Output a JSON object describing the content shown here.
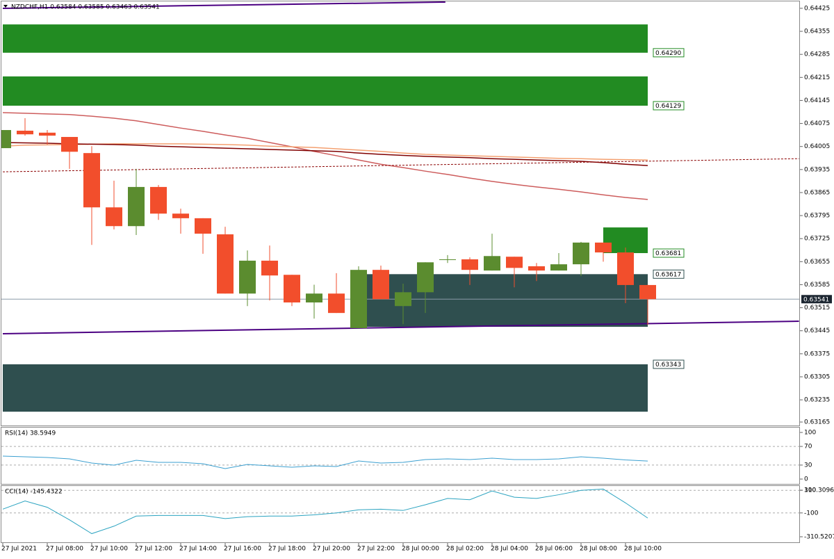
{
  "chart_data": [
    {
      "type": "candlestick",
      "title": "NZDCHF,H1  0.63584 0.63585 0.63463 0.63541",
      "categories": [
        "27 Jul 2021",
        null,
        "27 Jul 08:00",
        null,
        "27 Jul 10:00",
        null,
        "27 Jul 12:00",
        null,
        "27 Jul 14:00",
        null,
        "27 Jul 16:00",
        null,
        "27 Jul 18:00",
        null,
        "27 Jul 20:00",
        null,
        "27 Jul 22:00",
        null,
        "28 Jul 00:00",
        null,
        "28 Jul 02:00",
        null,
        "28 Jul 04:00",
        null,
        "28 Jul 06:00",
        null,
        "28 Jul 08:00",
        null,
        "28 Jul 10:00",
        null
      ],
      "open": [
        0.64,
        0.64053,
        0.64047,
        0.64034,
        0.63985,
        0.6382,
        0.63763,
        0.63882,
        0.63801,
        0.63787,
        0.63738,
        0.63558,
        0.63658,
        0.63615,
        0.63531,
        0.63558,
        0.63453,
        0.6363,
        0.6352,
        0.63562,
        0.63662,
        0.63662,
        0.63628,
        0.6367,
        0.63641,
        0.63628,
        0.63647,
        0.63713,
        0.63683,
        0.63584
      ],
      "high": [
        0.64055,
        0.64091,
        0.64055,
        0.64034,
        0.64006,
        0.63901,
        0.63937,
        0.63888,
        0.63816,
        0.63787,
        0.63761,
        0.63689,
        0.63704,
        0.63615,
        0.63585,
        0.6362,
        0.63641,
        0.63643,
        0.63588,
        0.63653,
        0.63675,
        0.63668,
        0.6374,
        0.6367,
        0.63651,
        0.63681,
        0.63715,
        0.63713,
        0.63698,
        0.63585
      ],
      "low": [
        0.64,
        0.64038,
        0.64011,
        0.63937,
        0.63706,
        0.63753,
        0.63736,
        0.63782,
        0.6374,
        0.63679,
        0.63558,
        0.6352,
        0.63537,
        0.6352,
        0.63482,
        0.63499,
        0.63453,
        0.63541,
        0.63465,
        0.63499,
        0.63651,
        0.63584,
        0.63628,
        0.63577,
        0.63596,
        0.63628,
        0.63611,
        0.63655,
        0.63529,
        0.63463
      ],
      "close": [
        0.64055,
        0.64042,
        0.64038,
        0.63989,
        0.6382,
        0.63763,
        0.63882,
        0.63801,
        0.63787,
        0.6374,
        0.63558,
        0.63658,
        0.63613,
        0.63531,
        0.63558,
        0.63499,
        0.6363,
        0.63541,
        0.63562,
        0.63653,
        0.63662,
        0.6363,
        0.63672,
        0.63636,
        0.63628,
        0.63647,
        0.63713,
        0.63683,
        0.63584,
        0.63541
      ],
      "up_color": "#5b8c2f",
      "down_color": "#f24e2c",
      "ylim": [
        0.63157,
        0.64446
      ],
      "yticks": [
        0.64425,
        0.64355,
        0.64285,
        0.64215,
        0.64145,
        0.64075,
        0.64005,
        0.63935,
        0.63865,
        0.63795,
        0.63725,
        0.63655,
        0.63585,
        0.63515,
        0.63445,
        0.63375,
        0.63305,
        0.63235,
        0.63165
      ],
      "lines": [
        {
          "color": "#cd5c5c",
          "values": [
            0.64108,
            0.64106,
            0.64104,
            0.64102,
            0.64097,
            0.64091,
            0.64083,
            0.64072,
            0.64061,
            0.64051,
            0.6404,
            0.6403,
            0.64017,
            0.64004,
            0.6399,
            0.63977,
            0.63964,
            0.63951,
            0.63941,
            0.6393,
            0.6392,
            0.63909,
            0.63899,
            0.6389,
            0.63882,
            0.63875,
            0.63867,
            0.63858,
            0.6385,
            0.63844
          ]
        },
        {
          "color": "#f4a070",
          "values": [
            0.64006,
            0.64009,
            0.6401,
            0.64011,
            0.64012,
            0.64013,
            0.64013,
            0.64013,
            0.64013,
            0.64012,
            0.64011,
            0.64009,
            0.64006,
            0.64004,
            0.64002,
            0.63998,
            0.63994,
            0.6399,
            0.63985,
            0.63981,
            0.63979,
            0.63977,
            0.63975,
            0.63973,
            0.63971,
            0.63969,
            0.63968,
            0.63966,
            0.63965,
            0.63964
          ]
        },
        {
          "color": "#800000",
          "values": [
            0.64017,
            0.64016,
            0.64015,
            0.64013,
            0.64012,
            0.64011,
            0.64009,
            0.64006,
            0.64004,
            0.64002,
            0.64,
            0.63998,
            0.63996,
            0.63994,
            0.63992,
            0.6399,
            0.63985,
            0.63981,
            0.63978,
            0.63975,
            0.63973,
            0.63971,
            0.63968,
            0.63966,
            0.63964,
            0.63962,
            0.6396,
            0.63956,
            0.63951,
            0.63947
          ]
        }
      ],
      "trendlines": [
        {
          "color": "#4b0082",
          "dashed": false,
          "start": [
            0,
            0.64425
          ],
          "end": [
            19.9,
            0.64444
          ]
        },
        {
          "color": "#4b0082",
          "dashed": false,
          "start": [
            0,
            0.63436
          ],
          "end": [
            35.8,
            0.63474
          ]
        },
        {
          "color": "#8b0000",
          "dashed": true,
          "start": [
            0,
            0.63928
          ],
          "end": [
            35.8,
            0.63968
          ]
        }
      ],
      "zones": [
        {
          "from": 0,
          "to": 29,
          "top": 0.64376,
          "bottom": 0.6429,
          "color": "#228b22"
        },
        {
          "from": 0,
          "to": 29,
          "top": 0.64218,
          "bottom": 0.64129,
          "color": "#228b22"
        },
        {
          "from": 16.3,
          "to": 29,
          "top": 0.63617,
          "bottom": 0.63457,
          "color": "#2f4f4f"
        },
        {
          "from": 0,
          "to": 29,
          "top": 0.63343,
          "bottom": 0.63199,
          "color": "#2f4f4f"
        },
        {
          "from": 27,
          "to": 29,
          "top": 0.63759,
          "bottom": 0.63681,
          "color": "#228b22"
        }
      ],
      "levels": [
        {
          "value": 0.6429,
          "label": "0.64290",
          "color": "#228b22"
        },
        {
          "value": 0.64129,
          "color": "#228b22"
        },
        {
          "value": 0.63681,
          "color": "#228b22"
        },
        {
          "value": 0.63617,
          "color": "#2f4f4f"
        },
        {
          "value": 0.63343,
          "color": "#2f4f4f"
        }
      ],
      "current_price": 0.63541
    },
    {
      "type": "line",
      "title": "RSI(14) 38.5949",
      "color": "#3a9fd0",
      "values": [
        49.3,
        47.8,
        46.3,
        43.3,
        34.3,
        29.9,
        40.3,
        35.8,
        35.8,
        32.8,
        22.4,
        31.3,
        28.4,
        25.4,
        28.4,
        26.9,
        38.8,
        34.3,
        35.8,
        41.8,
        43.3,
        41.8,
        44.8,
        41.8,
        41.8,
        43.3,
        47.8,
        44.8,
        41.0,
        38.5949
      ],
      "ylim": [
        -10.4,
        110.4
      ],
      "yticks": [
        100,
        70,
        30,
        0
      ],
      "levels": [
        70,
        30
      ]
    },
    {
      "type": "line",
      "title": "CCI(14) -145.4322",
      "color": "#2aa3c0",
      "values": [
        -66.7,
        5.6,
        -50,
        -161,
        -283,
        -217,
        -128,
        -122,
        -122,
        -122,
        -150,
        -133,
        -128,
        -128,
        -117,
        -100,
        -72,
        -67,
        -78,
        -28,
        28,
        17,
        94,
        39,
        28,
        61,
        100,
        111,
        -11,
        -145.4322
      ],
      "ylim": [
        -310.5207,
        310.3096
      ],
      "yticks": [
        310.3096,
        100,
        -100,
        -310.5207
      ],
      "levels": [
        100,
        -100
      ]
    }
  ]
}
